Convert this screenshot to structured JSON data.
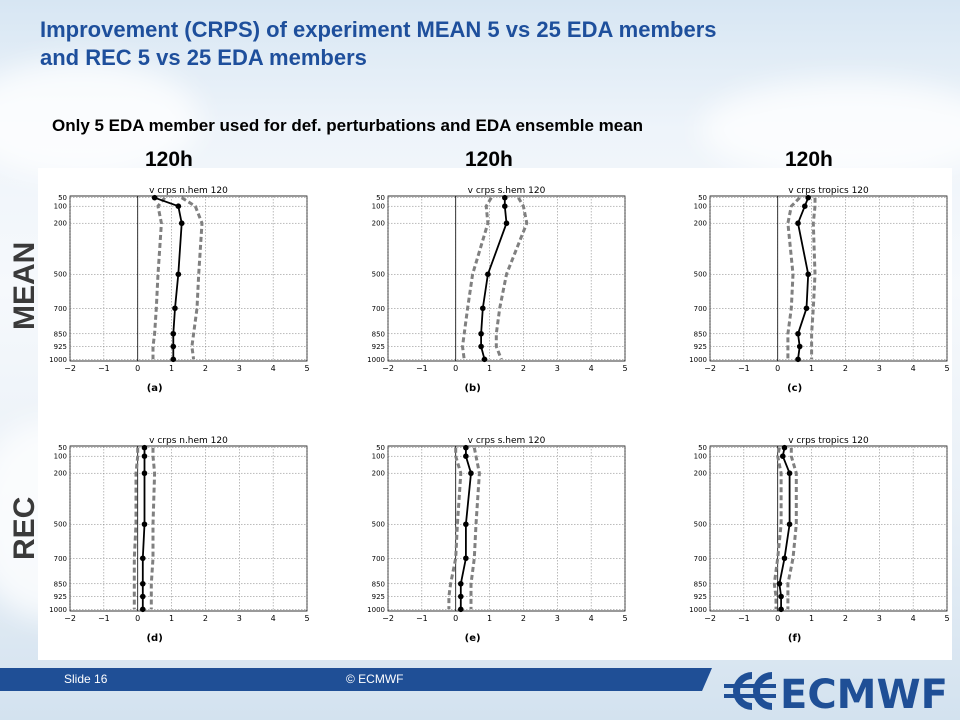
{
  "header": {
    "title_line1": "Improvement  (CRPS) of experiment MEAN 5 vs 25 EDA members",
    "title_line2": "and REC 5 vs 25 EDA members",
    "subtitle": "Only 5 EDA member used for def. perturbations and EDA ensemble mean"
  },
  "column_labels": [
    "120h",
    "120h",
    "120h"
  ],
  "row_labels": [
    "MEAN",
    "REC"
  ],
  "footer": {
    "slide": "Slide 16",
    "copyright": "© ECMWF",
    "logo_text": "ECMWF"
  },
  "colors": {
    "title": "#1e4f9c",
    "footer_bar": "#1f4f96",
    "series_mean": "#000000",
    "series_bounds": "#808080"
  },
  "chart_data": [
    {
      "type": "line",
      "title": "v crps n.hem 120",
      "caption": "(a)",
      "xlim": [
        -2,
        5
      ],
      "xticks": [
        -2,
        -1,
        0,
        1,
        2,
        3,
        4,
        5
      ],
      "y": [
        50,
        100,
        200,
        500,
        700,
        850,
        925,
        1000
      ],
      "series": [
        {
          "values": [
            0.5,
            1.2,
            1.3,
            1.2,
            1.1,
            1.05,
            1.05,
            1.05
          ]
        },
        {
          "values": [
            0.8,
            0.6,
            0.7,
            0.6,
            0.55,
            0.5,
            0.45,
            0.45
          ]
        },
        {
          "values": [
            1.3,
            1.7,
            1.9,
            1.8,
            1.75,
            1.65,
            1.6,
            1.65
          ]
        }
      ]
    },
    {
      "type": "line",
      "title": "v crps s.hem 120",
      "caption": "(b)",
      "xlim": [
        -2,
        5
      ],
      "xticks": [
        -2,
        -1,
        0,
        1,
        2,
        3,
        4,
        5
      ],
      "y": [
        50,
        100,
        200,
        500,
        700,
        850,
        925,
        1000
      ],
      "series": [
        {
          "values": [
            1.45,
            1.45,
            1.5,
            0.95,
            0.8,
            0.75,
            0.75,
            0.85
          ]
        },
        {
          "values": [
            1.05,
            0.9,
            0.95,
            0.5,
            0.35,
            0.25,
            0.2,
            0.25
          ]
        },
        {
          "values": [
            1.85,
            2.0,
            2.1,
            1.5,
            1.3,
            1.2,
            1.2,
            1.35
          ]
        }
      ]
    },
    {
      "type": "line",
      "title": "v crps tropics 120",
      "caption": "(c)",
      "xlim": [
        -2,
        5
      ],
      "xticks": [
        -2,
        -1,
        0,
        1,
        2,
        3,
        4,
        5
      ],
      "y": [
        50,
        100,
        200,
        500,
        700,
        850,
        925,
        1000
      ],
      "series": [
        {
          "values": [
            0.9,
            0.8,
            0.6,
            0.9,
            0.85,
            0.6,
            0.65,
            0.6
          ]
        },
        {
          "values": [
            0.65,
            0.4,
            0.3,
            0.45,
            0.4,
            0.3,
            0.3,
            0.3
          ]
        },
        {
          "values": [
            1.1,
            1.1,
            1.05,
            1.1,
            1.05,
            1.0,
            1.0,
            1.0
          ]
        }
      ]
    },
    {
      "type": "line",
      "title": "v crps n.hem 120",
      "caption": "(d)",
      "xlim": [
        -2,
        5
      ],
      "xticks": [
        -2,
        -1,
        0,
        1,
        2,
        3,
        4,
        5
      ],
      "y": [
        50,
        100,
        200,
        500,
        700,
        850,
        925,
        1000
      ],
      "series": [
        {
          "values": [
            0.2,
            0.2,
            0.2,
            0.2,
            0.15,
            0.15,
            0.15,
            0.15
          ]
        },
        {
          "values": [
            0.0,
            0.0,
            -0.05,
            -0.05,
            -0.1,
            -0.1,
            -0.1,
            -0.1
          ]
        },
        {
          "values": [
            0.45,
            0.45,
            0.5,
            0.45,
            0.45,
            0.4,
            0.4,
            0.4
          ]
        }
      ]
    },
    {
      "type": "line",
      "title": "v crps s.hem 120",
      "caption": "(e)",
      "xlim": [
        -2,
        5
      ],
      "xticks": [
        -2,
        -1,
        0,
        1,
        2,
        3,
        4,
        5
      ],
      "y": [
        50,
        100,
        200,
        500,
        700,
        850,
        925,
        1000
      ],
      "series": [
        {
          "values": [
            0.3,
            0.3,
            0.45,
            0.3,
            0.3,
            0.15,
            0.15,
            0.15
          ]
        },
        {
          "values": [
            0.0,
            0.0,
            0.15,
            0.05,
            0.0,
            -0.15,
            -0.2,
            -0.2
          ]
        },
        {
          "values": [
            0.55,
            0.6,
            0.7,
            0.6,
            0.55,
            0.45,
            0.45,
            0.45
          ]
        }
      ]
    },
    {
      "type": "line",
      "title": "v crps tropics 120",
      "caption": "(f)",
      "xlim": [
        -2,
        5
      ],
      "xticks": [
        -2,
        -1,
        0,
        1,
        2,
        3,
        4,
        5
      ],
      "y": [
        50,
        100,
        200,
        500,
        700,
        850,
        925,
        1000
      ],
      "series": [
        {
          "values": [
            0.2,
            0.15,
            0.35,
            0.35,
            0.2,
            0.05,
            0.1,
            0.1
          ]
        },
        {
          "values": [
            0.05,
            0.0,
            0.1,
            0.1,
            0.0,
            -0.1,
            -0.05,
            -0.05
          ]
        },
        {
          "values": [
            0.4,
            0.4,
            0.55,
            0.55,
            0.45,
            0.3,
            0.3,
            0.3
          ]
        }
      ]
    }
  ]
}
